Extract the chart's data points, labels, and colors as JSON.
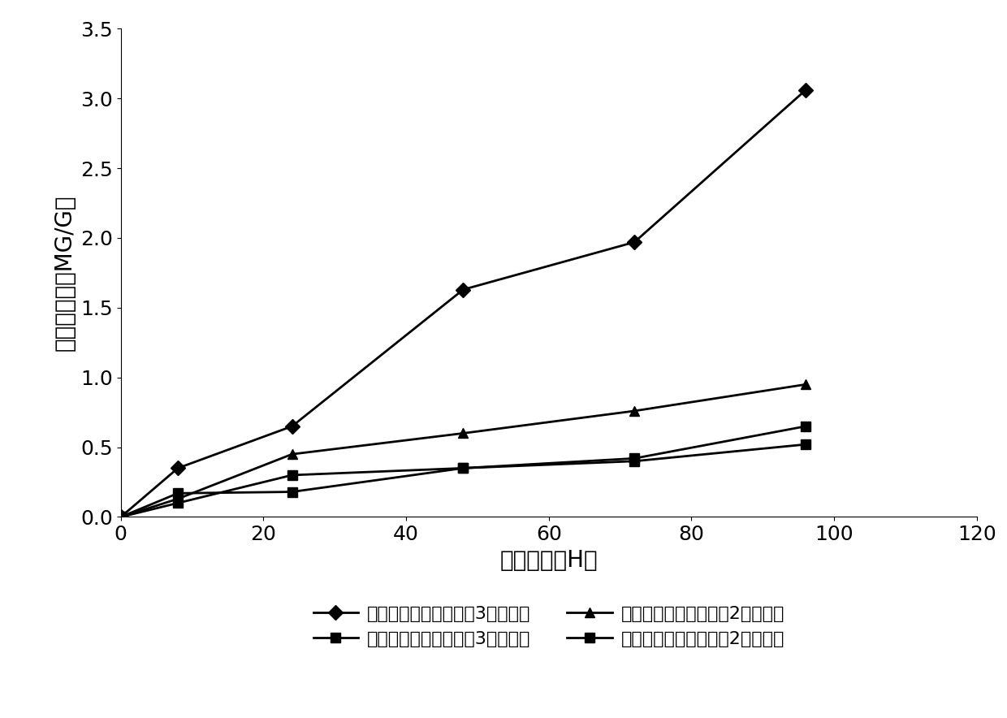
{
  "x": [
    0,
    8,
    24,
    48,
    72,
    96
  ],
  "series": [
    {
      "label": "花瓣铝离子含量（配方3保鲜液）",
      "y": [
        0,
        0.35,
        0.65,
        1.63,
        1.97,
        3.06
      ],
      "marker": "D",
      "color": "#000000",
      "linewidth": 2.0,
      "markersize": 9
    },
    {
      "label": "花枝铝离子含量（配方3保鲜液）",
      "y": [
        0,
        0.17,
        0.18,
        0.35,
        0.42,
        0.65
      ],
      "marker": "s",
      "color": "#000000",
      "linewidth": 2.0,
      "markersize": 9
    },
    {
      "label": "花瓣铝离子含量（配方2保鲜液）",
      "y": [
        0,
        0.13,
        0.45,
        0.6,
        0.76,
        0.95
      ],
      "marker": "^",
      "color": "#000000",
      "linewidth": 2.0,
      "markersize": 9
    },
    {
      "label": "花枝铝离子含量（配方2保鲜液）",
      "y": [
        0,
        0.1,
        0.3,
        0.35,
        0.4,
        0.52
      ],
      "marker": "s",
      "color": "#000000",
      "linewidth": 2.0,
      "markersize": 9
    }
  ],
  "xlabel": "处理时间（H）",
  "ylabel": "铝离子含量（MG/G）",
  "xlim": [
    0,
    120
  ],
  "ylim": [
    0,
    3.5
  ],
  "xticks": [
    0,
    20,
    40,
    60,
    80,
    100,
    120
  ],
  "yticks": [
    0,
    0.5,
    1.0,
    1.5,
    2.0,
    2.5,
    3.0,
    3.5
  ],
  "background_color": "#ffffff",
  "legend_ncol": 2,
  "fontsize_label": 20,
  "fontsize_tick": 18,
  "fontsize_legend": 16
}
